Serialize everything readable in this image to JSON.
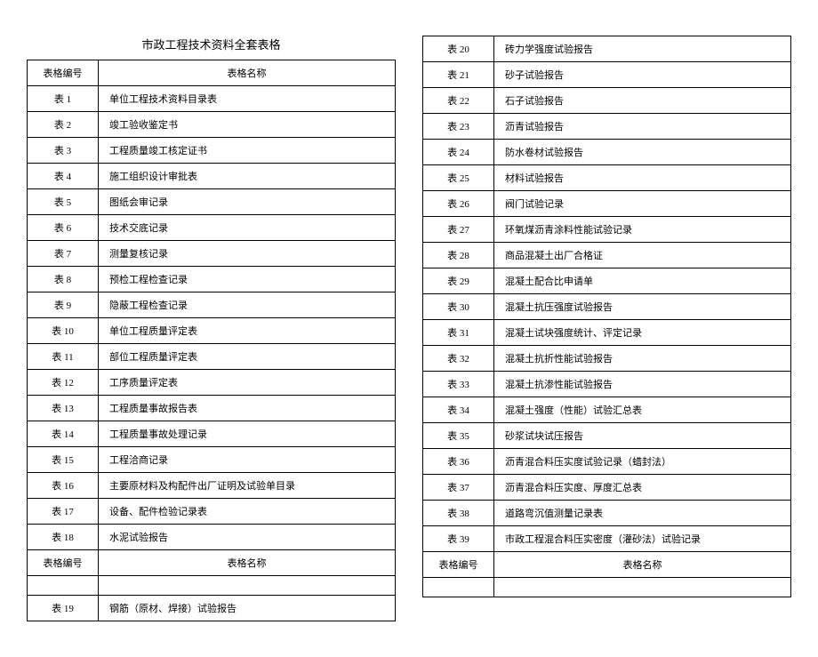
{
  "title": "市政工程技术资料全套表格",
  "header": {
    "id": "表格编号",
    "name": "表格名称"
  },
  "left": {
    "rows1": [
      {
        "id": "表 1",
        "name": "单位工程技术资料目录表"
      },
      {
        "id": "表 2",
        "name": "竣工验收鉴定书"
      },
      {
        "id": "表 3",
        "name": "工程质量竣工核定证书"
      },
      {
        "id": "表 4",
        "name": "施工组织设计审批表"
      },
      {
        "id": "表 5",
        "name": "图纸会审记录"
      },
      {
        "id": "表 6",
        "name": "技术交底记录"
      },
      {
        "id": "表 7",
        "name": "测量复核记录"
      },
      {
        "id": "表 8",
        "name": "预检工程检查记录"
      },
      {
        "id": "表 9",
        "name": "隐蔽工程检查记录"
      },
      {
        "id": "表 10",
        "name": "单位工程质量评定表"
      },
      {
        "id": "表 11",
        "name": "部位工程质量评定表"
      },
      {
        "id": "表 12",
        "name": "工序质量评定表"
      },
      {
        "id": "表 13",
        "name": "工程质量事故报告表"
      },
      {
        "id": "表 14",
        "name": "工程质量事故处理记录"
      },
      {
        "id": "表 15",
        "name": "工程洽商记录"
      },
      {
        "id": "表 16",
        "name": "主要原材料及构配件出厂证明及试验单目录"
      },
      {
        "id": "表 17",
        "name": "设备、配件检验记录表"
      },
      {
        "id": "表 18",
        "name": "水泥试验报告"
      }
    ],
    "rows2": [
      {
        "id": "表 19",
        "name": "钢筋（原材、焊接）试验报告"
      }
    ]
  },
  "right": {
    "rows1": [
      {
        "id": "表 20",
        "name": "砖力学强度试验报告"
      },
      {
        "id": "表 21",
        "name": "砂子试验报告"
      },
      {
        "id": "表 22",
        "name": "石子试验报告"
      },
      {
        "id": "表 23",
        "name": "沥青试验报告"
      },
      {
        "id": "表 24",
        "name": "防水卷材试验报告"
      },
      {
        "id": "表 25",
        "name": "材料试验报告"
      },
      {
        "id": "表 26",
        "name": "阀门试验记录"
      },
      {
        "id": "表 27",
        "name": "环氧煤沥青涂料性能试验记录"
      },
      {
        "id": "表 28",
        "name": "商品混凝土出厂合格证"
      },
      {
        "id": "表 29",
        "name": "混凝土配合比申请单"
      },
      {
        "id": "表 30",
        "name": "混凝土抗压强度试验报告"
      },
      {
        "id": "表 31",
        "name": "混凝土试块强度统计、评定记录"
      },
      {
        "id": "表 32",
        "name": "混凝土抗折性能试验报告"
      },
      {
        "id": "表 33",
        "name": "混凝土抗渗性能试验报告"
      },
      {
        "id": "表 34",
        "name": "混凝土强度（性能）试验汇总表"
      },
      {
        "id": "表 35",
        "name": "砂浆试块试压报告"
      },
      {
        "id": "表 36",
        "name": "沥青混合料压实度试验记录（蜡封法）"
      },
      {
        "id": "表 37",
        "name": "沥青混合料压实度、厚度汇总表"
      },
      {
        "id": "表 38",
        "name": "道路弯沉值测量记录表"
      },
      {
        "id": "表 39",
        "name": "市政工程混合料压实密度（灌砂法）试验记录"
      }
    ]
  }
}
